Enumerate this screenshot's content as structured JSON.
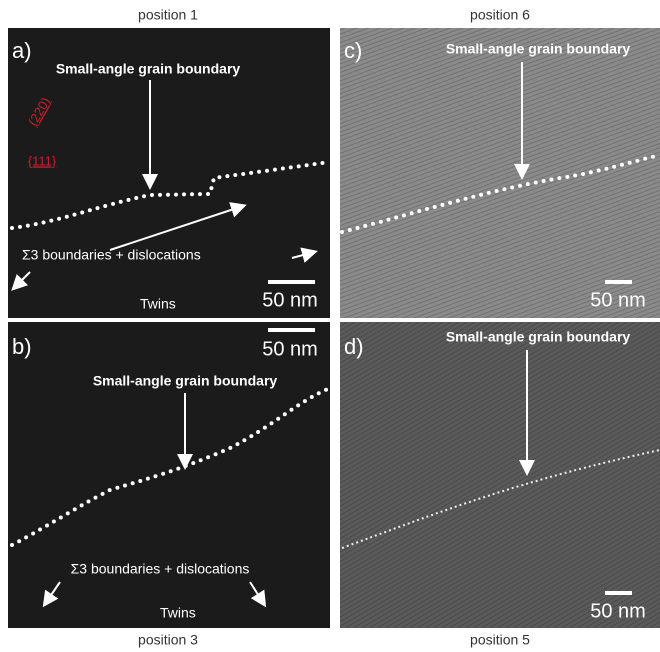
{
  "panels": [
    {
      "position": "position 1",
      "letter": "a)",
      "boundary_label": "Small-angle grain boundary",
      "planes": [
        "(220)",
        "{111}"
      ],
      "sigma3_label": "Σ3 boundaries + dislocations",
      "twins_label": "Twins",
      "scale_bar": "50 nm"
    },
    {
      "position": "position 3",
      "letter": "b)",
      "boundary_label": "Small-angle grain boundary",
      "sigma3_label": "Σ3 boundaries + dislocations",
      "twins_label": "Twins",
      "scale_bar": "50 nm"
    },
    {
      "position": "position 6",
      "letter": "c)",
      "boundary_label": "Small-angle grain boundary",
      "scale_bar": "50 nm"
    },
    {
      "position": "position 5",
      "letter": "d)",
      "boundary_label": "Small-angle grain boundary",
      "scale_bar": "50 nm"
    }
  ]
}
